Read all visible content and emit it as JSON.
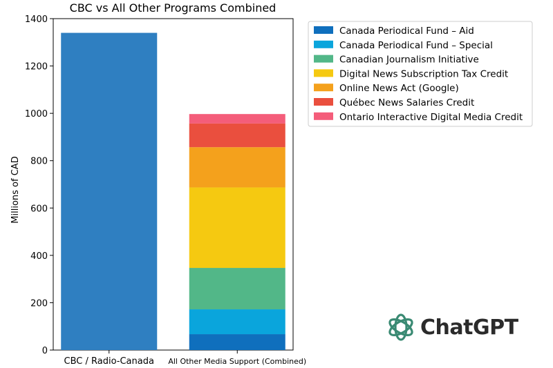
{
  "chart_data": {
    "type": "bar",
    "stacked": true,
    "title": "CBC vs All Other Programs Combined",
    "xlabel": "",
    "ylabel": "Millions of CAD",
    "ylim": [
      0,
      1400
    ],
    "yticks": [
      0,
      200,
      400,
      600,
      800,
      1000,
      1200,
      1400
    ],
    "categories": [
      "CBC / Radio-Canada",
      "All Other Media Support (Combined)"
    ],
    "cbc": {
      "value": 1340,
      "color": "#2f7fc1"
    },
    "series": [
      {
        "name": "Canada Periodical Fund – Aid",
        "values": [
          0,
          67
        ],
        "color": "#0f6fbd"
      },
      {
        "name": "Canada Periodical Fund – Special",
        "values": [
          0,
          105
        ],
        "color": "#0aa5dc"
      },
      {
        "name": "Canadian Journalism Initiative",
        "values": [
          0,
          175
        ],
        "color": "#52b788"
      },
      {
        "name": "Digital News Subscription Tax Credit",
        "values": [
          0,
          340
        ],
        "color": "#f5c911"
      },
      {
        "name": "Online News Act (Google)",
        "values": [
          0,
          170
        ],
        "color": "#f4a11c"
      },
      {
        "name": "Québec News Salaries Credit",
        "values": [
          0,
          100
        ],
        "color": "#ea4f3e"
      },
      {
        "name": "Ontario Interactive Digital Media Credit",
        "values": [
          0,
          40
        ],
        "color": "#f45d7a"
      }
    ],
    "legend_position": "top-right"
  },
  "watermark": {
    "text": "ChatGPT",
    "icon": "openai-knot-icon",
    "color": "#3a8a73"
  }
}
